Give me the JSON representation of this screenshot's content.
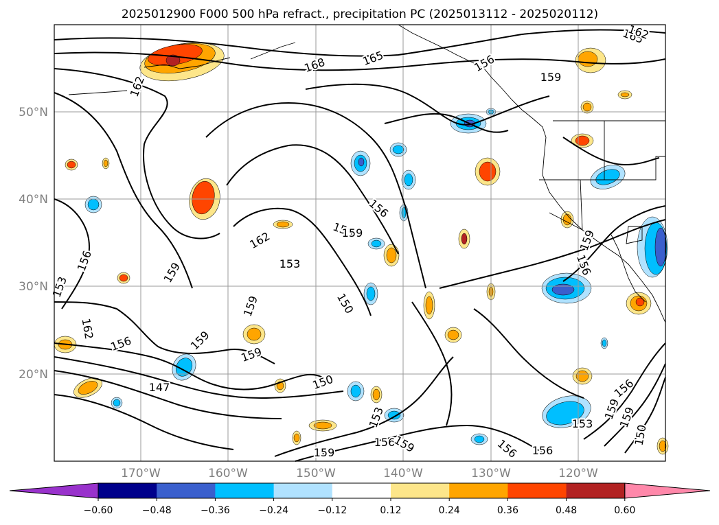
{
  "title": "2025012900 F000 500 hPa refract., precipitation PC (2025013112 - 2025020112)",
  "lat_labels": [
    "50°N",
    "40°N",
    "30°N",
    "20°N"
  ],
  "lon_labels": [
    "170°W",
    "160°W",
    "150°W",
    "140°W",
    "130°W",
    "120°W"
  ],
  "contour_labels": [
    "168",
    "165",
    "162",
    "165",
    "159",
    "162",
    "159",
    "162",
    "153",
    "159",
    "159",
    "159",
    "159",
    "156",
    "156",
    "150",
    "150",
    "147",
    "159",
    "162",
    "153",
    "156",
    "156",
    "159",
    "156",
    "156",
    "153",
    "150",
    "153",
    "156",
    "159",
    "153",
    "156",
    "159",
    "159",
    "156"
  ],
  "colorbar": {
    "ticks": [
      "−0.60",
      "−0.48",
      "−0.36",
      "−0.24",
      "−0.12",
      "0.12",
      "0.24",
      "0.36",
      "0.48",
      "0.60"
    ],
    "colors": [
      "#9932cc",
      "#00008b",
      "#3a5fcd",
      "#00bfff",
      "#b0e2ff",
      "#ffffff",
      "#fde68a",
      "#ffa500",
      "#ff4500",
      "#b22222",
      "#ff88aa"
    ]
  },
  "fill_colors": {
    "pos1": "#fde68a",
    "pos2": "#ffa500",
    "pos3": "#ff4500",
    "pos4": "#b22222",
    "neg1": "#b0e2ff",
    "neg2": "#00bfff",
    "neg3": "#3a5fcd"
  }
}
